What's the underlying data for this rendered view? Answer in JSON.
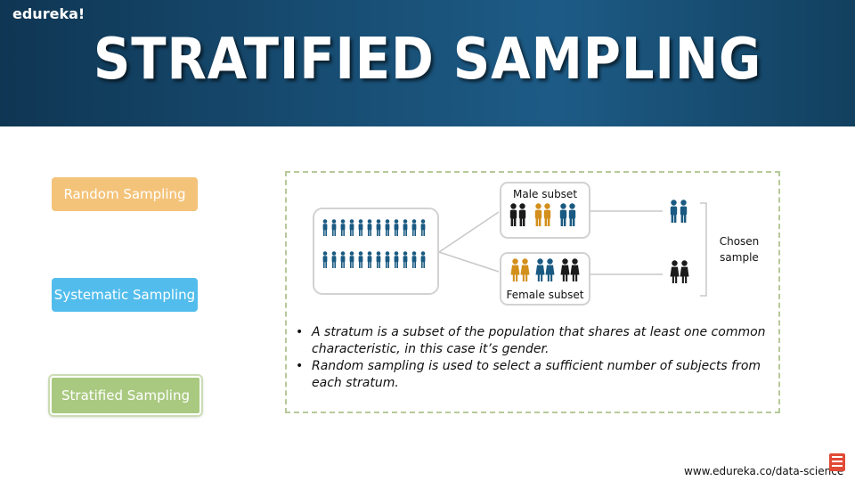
{
  "header": {
    "brand": "edureka!",
    "title": "STRATIFIED SAMPLING"
  },
  "methods": {
    "random": "Random Sampling",
    "systematic": "Systematic Sampling",
    "stratified": "Stratified Sampling"
  },
  "diagram": {
    "male_subset_label": "Male subset",
    "female_subset_label": "Female subset",
    "chosen_label_1": "Chosen",
    "chosen_label_2": "sample"
  },
  "bullets": [
    "A stratum is a subset of the population that shares at least one common characteristic, in this case it’s gender.",
    "Random sampling is used to select a sufficient number of subjects from each stratum."
  ],
  "footer": {
    "url": "www.edureka.co/data-science"
  },
  "colors": {
    "blue_person": "#1a5a82",
    "gold_person": "#d38f1c",
    "black_person": "#1b1b1b"
  },
  "icons": {
    "person": "person-icon",
    "subscribe": "subscribe-icon"
  }
}
